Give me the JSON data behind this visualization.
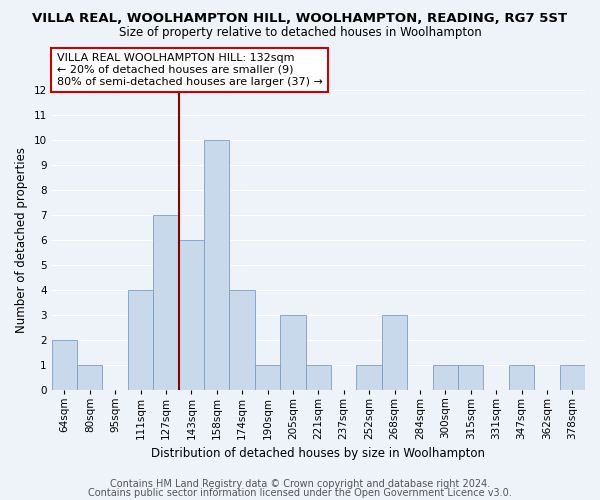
{
  "title1": "VILLA REAL, WOOLHAMPTON HILL, WOOLHAMPTON, READING, RG7 5ST",
  "title2": "Size of property relative to detached houses in Woolhampton",
  "xlabel": "Distribution of detached houses by size in Woolhampton",
  "ylabel": "Number of detached properties",
  "categories": [
    "64sqm",
    "80sqm",
    "95sqm",
    "111sqm",
    "127sqm",
    "143sqm",
    "158sqm",
    "174sqm",
    "190sqm",
    "205sqm",
    "221sqm",
    "237sqm",
    "252sqm",
    "268sqm",
    "284sqm",
    "300sqm",
    "315sqm",
    "331sqm",
    "347sqm",
    "362sqm",
    "378sqm"
  ],
  "values": [
    2,
    1,
    0,
    4,
    7,
    6,
    10,
    4,
    1,
    3,
    1,
    0,
    1,
    3,
    0,
    1,
    1,
    0,
    1,
    0,
    1
  ],
  "bar_color": "#c9d9ec",
  "bar_edge_color": "#7a9ec7",
  "vline_color": "#8b0000",
  "vline_pos": 4.5,
  "ylim": [
    0,
    12
  ],
  "yticks": [
    0,
    1,
    2,
    3,
    4,
    5,
    6,
    7,
    8,
    9,
    10,
    11,
    12
  ],
  "annotation_line1": "VILLA REAL WOOLHAMPTON HILL: 132sqm",
  "annotation_line2": "← 20% of detached houses are smaller (9)",
  "annotation_line3": "80% of semi-detached houses are larger (37) →",
  "annotation_box_color": "#ffffff",
  "annotation_box_edge": "#cc0000",
  "footer1": "Contains HM Land Registry data © Crown copyright and database right 2024.",
  "footer2": "Contains public sector information licensed under the Open Government Licence v3.0.",
  "bg_color": "#eef2f9",
  "grid_color": "#ffffff",
  "title_fontsize": 9.5,
  "subtitle_fontsize": 8.5,
  "axis_label_fontsize": 8.5,
  "tick_fontsize": 7.5,
  "annotation_fontsize": 8,
  "footer_fontsize": 7
}
